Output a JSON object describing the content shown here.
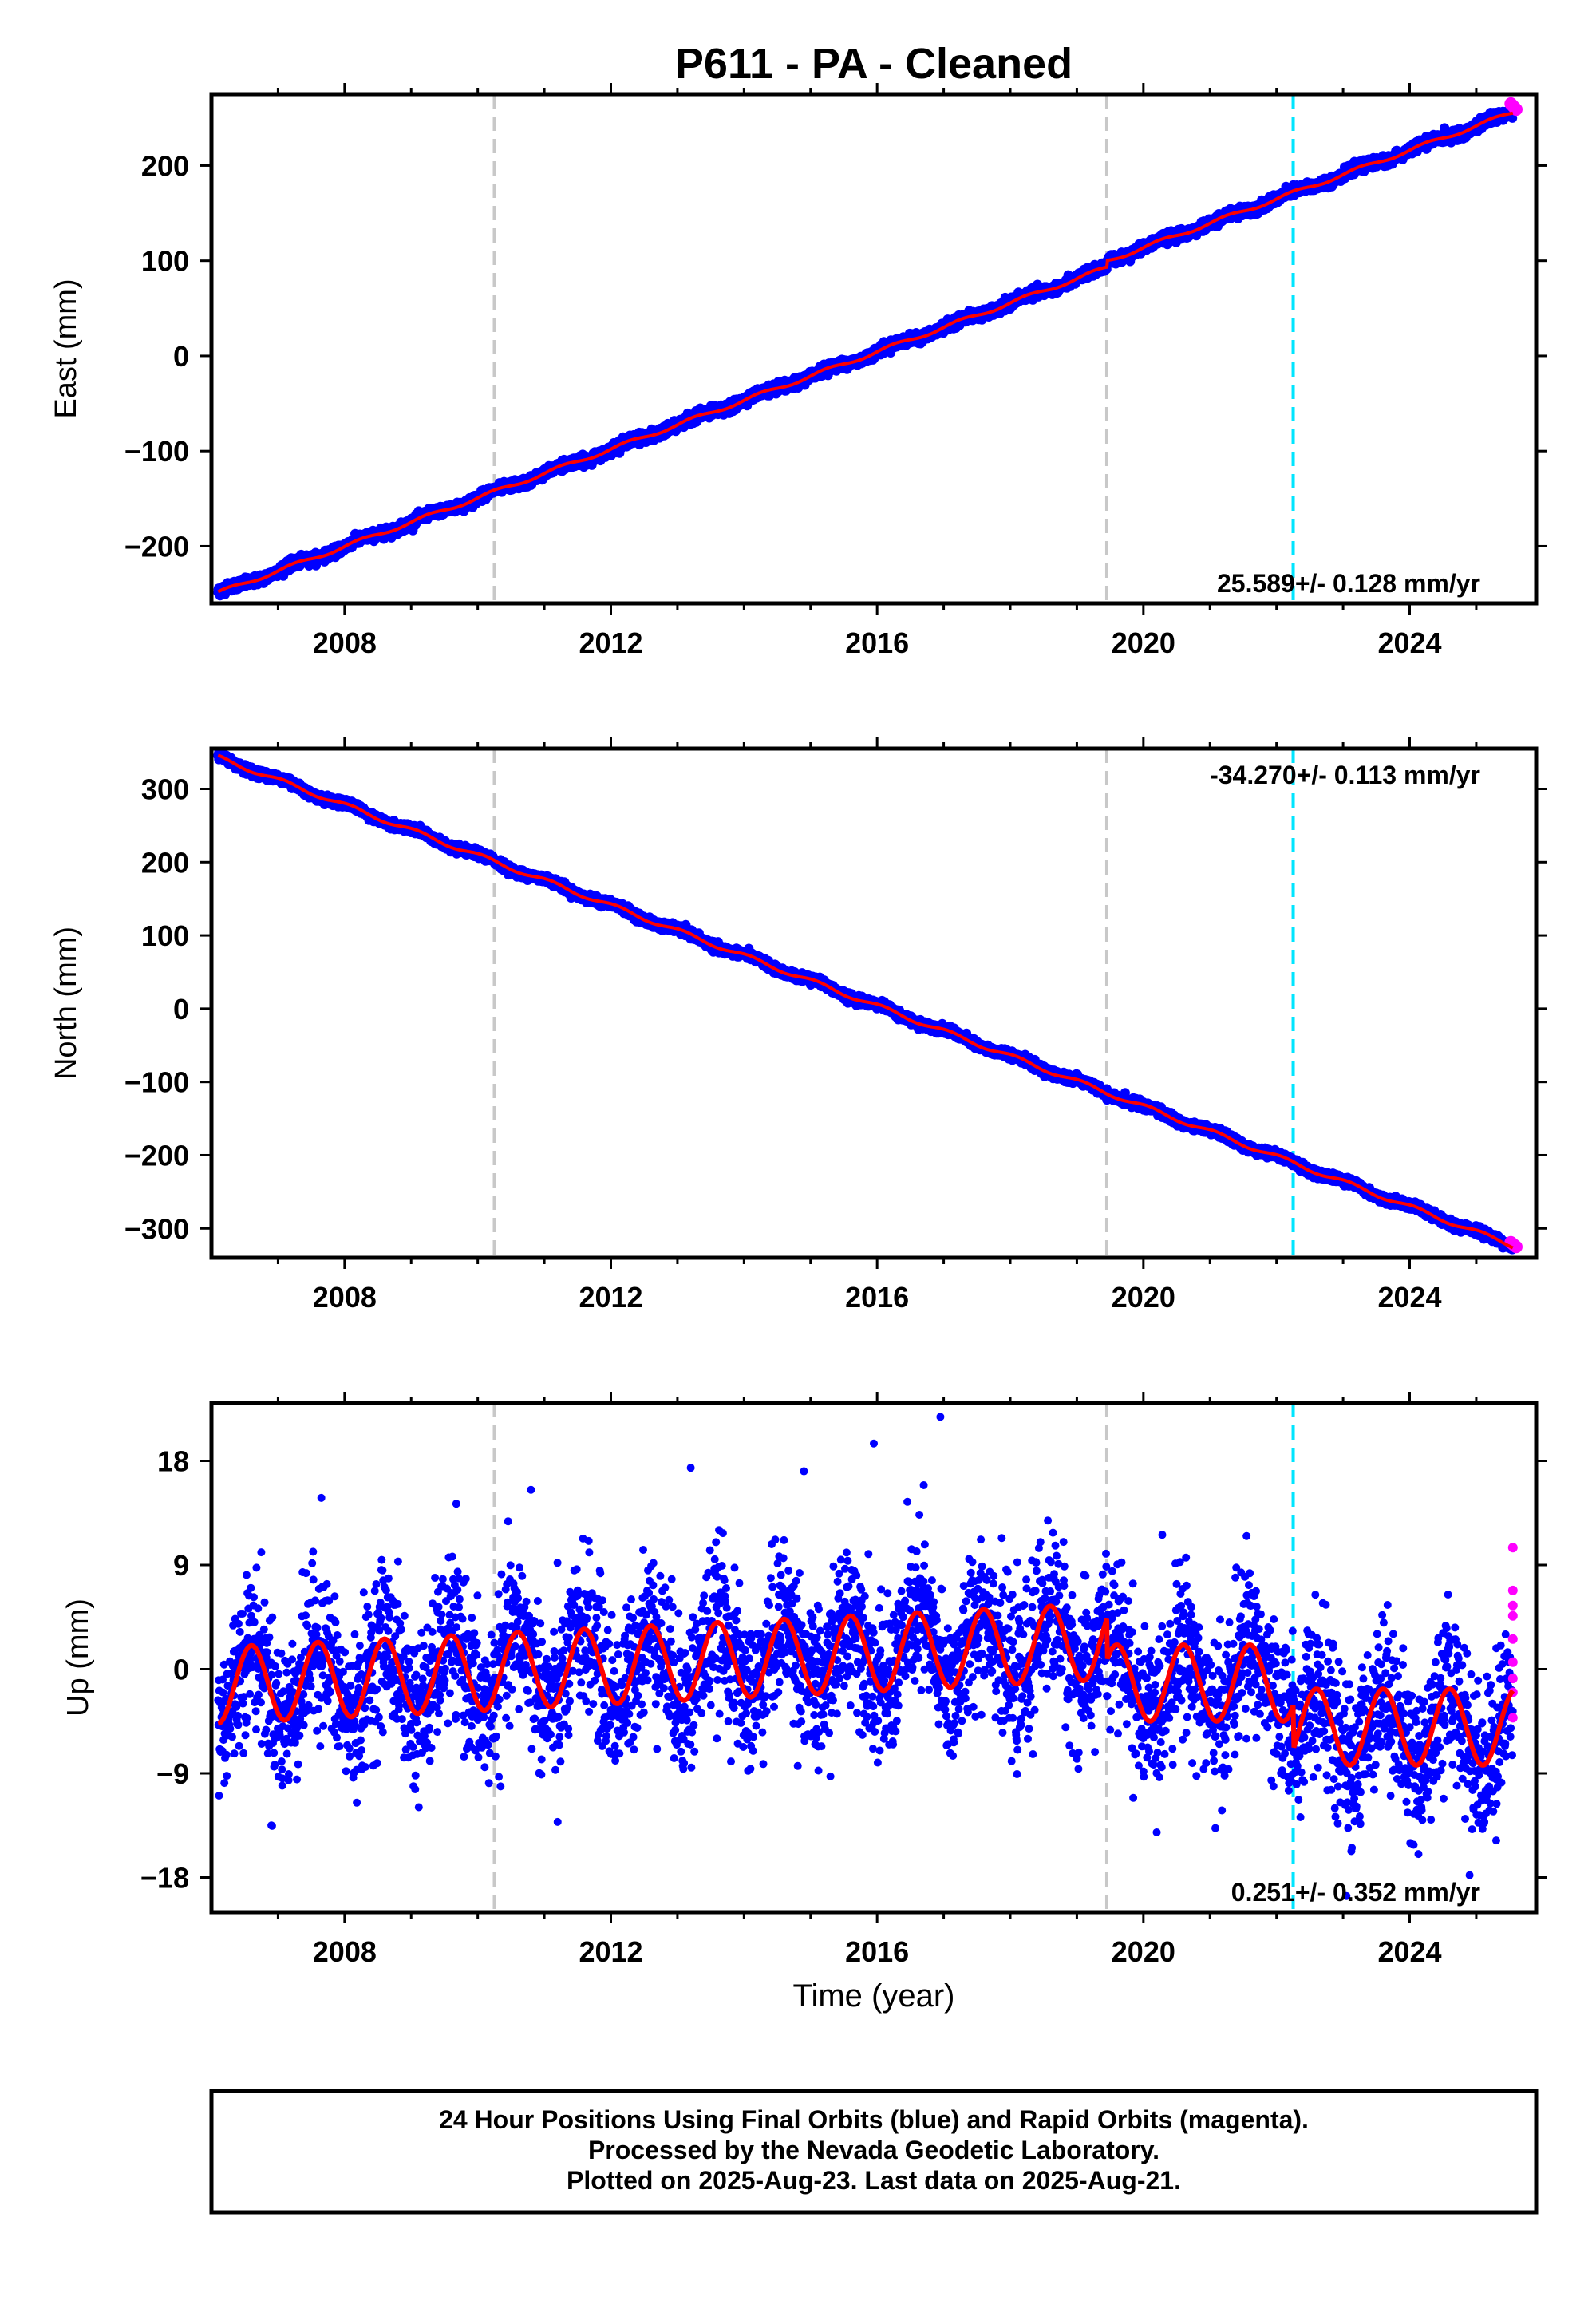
{
  "title": "P611  - PA - Cleaned",
  "x_axis_label": "Time (year)",
  "footer": {
    "line1": "24 Hour Positions Using Final Orbits (blue) and Rapid Orbits (magenta).",
    "line2": "Processed by the Nevada Geodetic Laboratory.",
    "line3": "Plotted on 2025-Aug-23. Last data on 2025-Aug-21."
  },
  "colors": {
    "final_orbits": "#0000ff",
    "rapid_orbits": "#ff00ff",
    "model_fit": "#ff0000",
    "equipment_change": "#c8c8c8",
    "event_marker": "#00e5ff"
  },
  "chart_data": [
    {
      "type": "scatter",
      "component": "east",
      "ylabel": "East (mm)",
      "xlim": [
        2006.0,
        2025.9
      ],
      "ylim": [
        -260,
        275
      ],
      "xticks": [
        2008,
        2012,
        2016,
        2020,
        2024
      ],
      "yticks": [
        -200,
        -100,
        0,
        100,
        200
      ],
      "rate_label": "25.589+/- 0.128 mm/yr",
      "rate_position": "bottom-right",
      "series": [
        {
          "values_start": [
            2006.1,
            -249
          ],
          "values_end": [
            2025.6,
            262
          ],
          "rate_mm_per_yr": 25.589,
          "annual_amplitude_mm": 2.0,
          "offset_at_2019_5_mm": 7
        }
      ],
      "vertical_markers": [
        {
          "x": 2010.25,
          "style": "dashed",
          "color": "gray"
        },
        {
          "x": 2019.45,
          "style": "dashed",
          "color": "gray"
        },
        {
          "x": 2022.25,
          "style": "dashed",
          "color": "cyan"
        }
      ]
    },
    {
      "type": "scatter",
      "component": "north",
      "ylabel": "North (mm)",
      "xlim": [
        2006.0,
        2025.9
      ],
      "ylim": [
        -340,
        355
      ],
      "xticks": [
        2008,
        2012,
        2016,
        2020,
        2024
      ],
      "yticks": [
        -300,
        -200,
        -100,
        0,
        100,
        200,
        300
      ],
      "rate_label": "-34.270+/- 0.113 mm/yr",
      "rate_position": "top-right",
      "series": [
        {
          "values_start": [
            2006.1,
            343
          ],
          "values_end": [
            2025.6,
            -322
          ],
          "rate_mm_per_yr": -34.27,
          "annual_amplitude_mm": 3.0
        }
      ],
      "vertical_markers": [
        {
          "x": 2010.25,
          "style": "dashed",
          "color": "gray"
        },
        {
          "x": 2019.45,
          "style": "dashed",
          "color": "gray"
        },
        {
          "x": 2022.25,
          "style": "dashed",
          "color": "cyan"
        }
      ]
    },
    {
      "type": "scatter",
      "component": "up",
      "ylabel": "Up (mm)",
      "xlim": [
        2006.0,
        2025.9
      ],
      "ylim": [
        -21,
        23
      ],
      "xticks": [
        2008,
        2012,
        2016,
        2020,
        2024
      ],
      "yticks": [
        -18,
        -9,
        0,
        9,
        18
      ],
      "rate_label": "0.251+/- 0.352 mm/yr",
      "rate_position": "bottom-right",
      "series": [
        {
          "rate_mm_per_yr": 0.251,
          "annual_amplitude_mm": 3.3,
          "scatter_sigma_mm": 3.3,
          "model_mean_2006_mm": -1.4,
          "model_mean_2019_mm": 2.4,
          "model_mean_2020_mm": -1.2,
          "model_mean_2023_mm": -5.0
        }
      ],
      "rapid_points": [
        [
          2025.55,
          10.5
        ],
        [
          2025.55,
          6.8
        ],
        [
          2025.55,
          5.5
        ],
        [
          2025.55,
          4.6
        ],
        [
          2025.55,
          2.6
        ],
        [
          2025.55,
          0.6
        ],
        [
          2025.55,
          -0.8
        ],
        [
          2025.55,
          -2.0
        ],
        [
          2025.55,
          -4.2
        ]
      ],
      "vertical_markers": [
        {
          "x": 2010.25,
          "style": "dashed",
          "color": "gray"
        },
        {
          "x": 2019.45,
          "style": "dashed",
          "color": "gray"
        },
        {
          "x": 2022.25,
          "style": "dashed",
          "color": "cyan"
        }
      ]
    }
  ]
}
